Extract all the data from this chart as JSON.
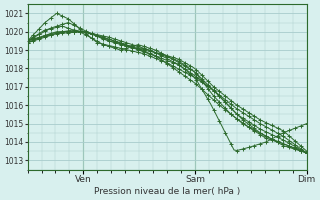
{
  "title": "Pression niveau de la mer( hPa )",
  "bg_color": "#d8f0ee",
  "grid_color": "#a8cccc",
  "line_color": "#2d6a2d",
  "ylim": [
    1012.5,
    1021.5
  ],
  "yticks": [
    1013,
    1014,
    1015,
    1016,
    1017,
    1018,
    1019,
    1020,
    1021
  ],
  "xtick_positions": [
    48,
    144,
    240
  ],
  "xtick_labels": [
    "Ven",
    "Sam",
    "Dim"
  ],
  "xlim": [
    0,
    240
  ],
  "figsize": [
    3.2,
    2.0
  ],
  "dpi": 100
}
